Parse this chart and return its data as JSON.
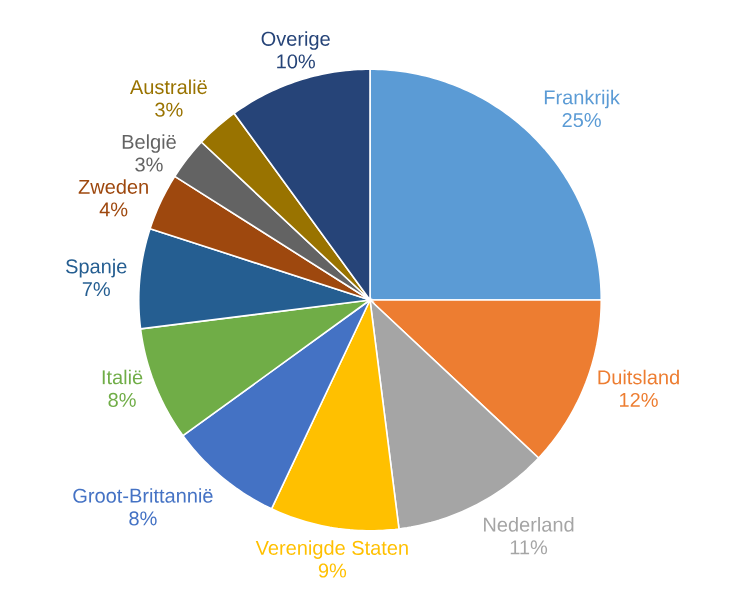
{
  "chart_data": {
    "type": "pie",
    "categories": [
      "Frankrijk",
      "Duitsland",
      "Nederland",
      "Verenigde Staten",
      "Groot-Brittannië",
      "Italië",
      "Spanje",
      "Zweden",
      "België",
      "Australië",
      "Overige"
    ],
    "values": [
      25,
      12,
      11,
      9,
      8,
      8,
      7,
      4,
      3,
      3,
      10
    ],
    "value_labels": [
      "25%",
      "12%",
      "11%",
      "9%",
      "8%",
      "8%",
      "7%",
      "4%",
      "3%",
      "3%",
      "10%"
    ],
    "colors": [
      "#5b9bd5",
      "#ed7d31",
      "#a5a5a5",
      "#ffc000",
      "#4472c4",
      "#70ad47",
      "#255e91",
      "#9e480e",
      "#636363",
      "#997300",
      "#264478"
    ]
  }
}
